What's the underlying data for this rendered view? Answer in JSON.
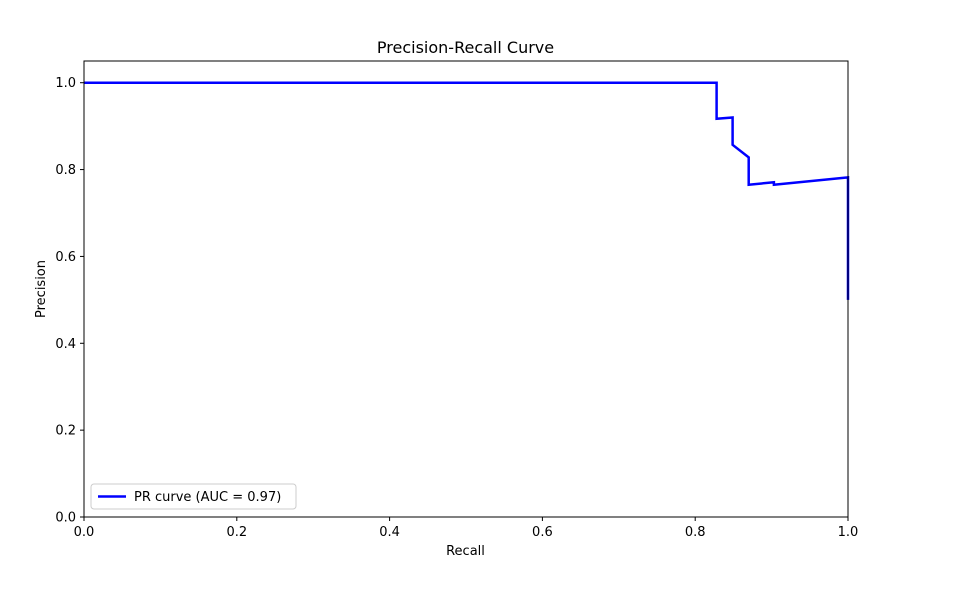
{
  "chart_data": {
    "type": "line",
    "title": "Precision-Recall Curve",
    "xlabel": "Recall",
    "ylabel": "Precision",
    "xlim": [
      0.0,
      1.0
    ],
    "ylim": [
      0.0,
      1.05
    ],
    "xticks": [
      "0.0",
      "0.2",
      "0.4",
      "0.6",
      "0.8",
      "1.0"
    ],
    "yticks": [
      "0.0",
      "0.2",
      "0.4",
      "0.6",
      "0.8",
      "1.0"
    ],
    "grid": false,
    "legend_position": "lower-left",
    "series": [
      {
        "name": "PR curve (AUC = 0.97)",
        "color": "#0000ff",
        "x": [
          0.0,
          0.828,
          0.828,
          0.849,
          0.849,
          0.87,
          0.87,
          0.903,
          0.903,
          1.0,
          1.0
        ],
        "y": [
          1.0,
          1.0,
          0.917,
          0.92,
          0.857,
          0.828,
          0.765,
          0.771,
          0.765,
          0.782,
          0.5
        ]
      }
    ]
  }
}
